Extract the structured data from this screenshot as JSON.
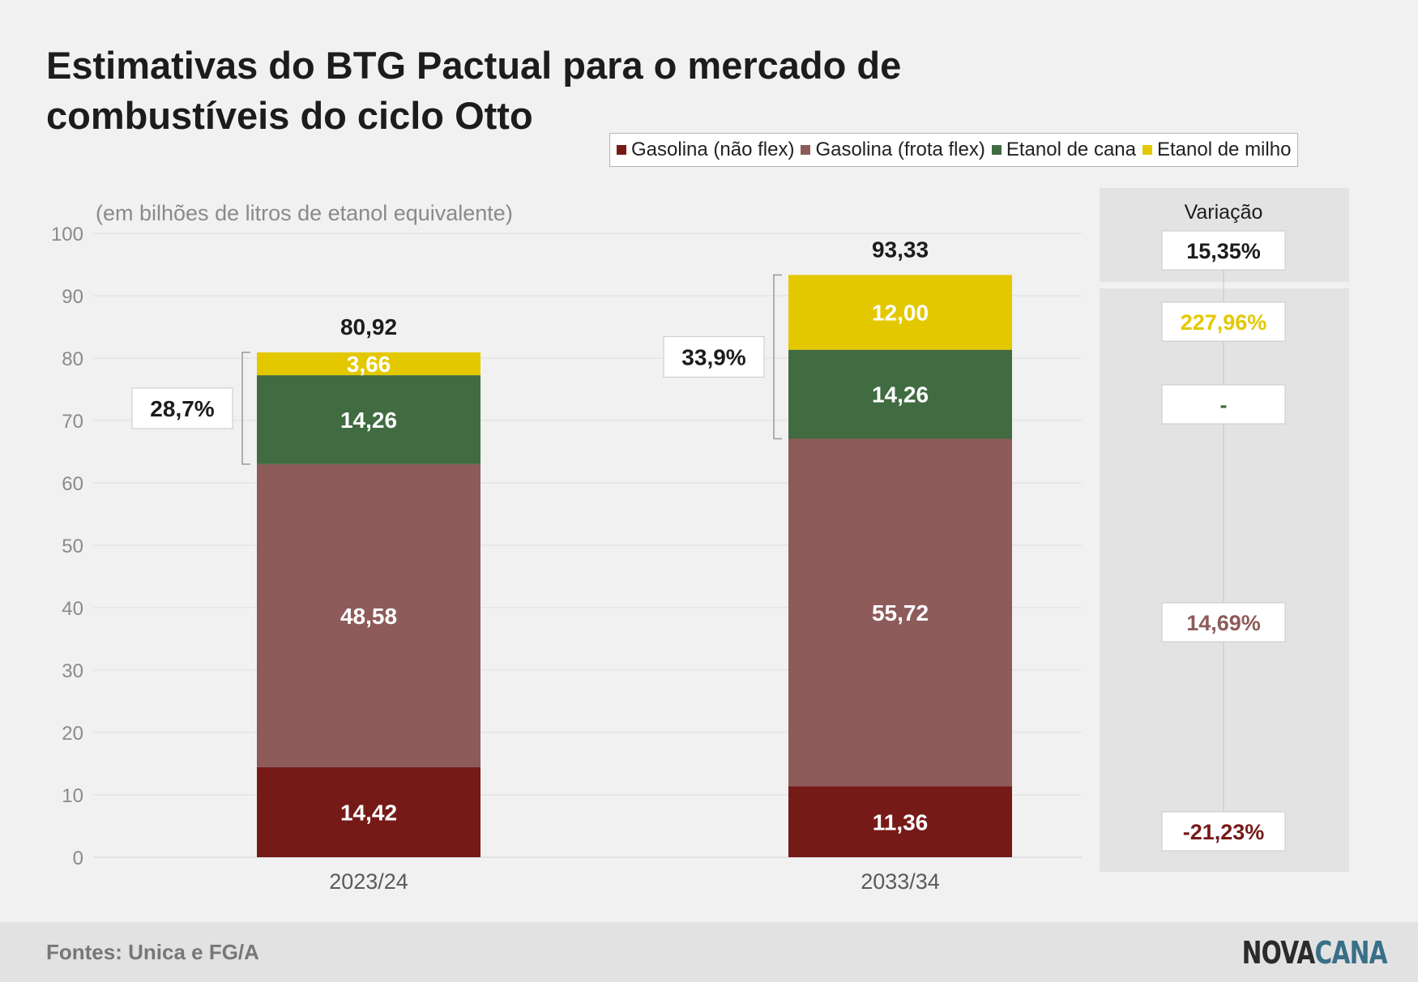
{
  "title": "Estimativas do BTG Pactual para o mercado de combustíveis do ciclo Otto",
  "source": "Fontes: Unica e FG/A",
  "logo": {
    "part1": "NOVA",
    "part2": "CANA",
    "color1": "#2b2b2b",
    "color2": "#3a6f88"
  },
  "variation_header": "Variação",
  "chart_data": {
    "type": "bar",
    "stacked": true,
    "subtitle": "(em bilhões de litros de etanol equivalente)",
    "categories": [
      "2023/24",
      "2033/34"
    ],
    "ylim": [
      0,
      100
    ],
    "yticks": [
      0,
      10,
      20,
      30,
      40,
      50,
      60,
      70,
      80,
      90,
      100
    ],
    "grid": true,
    "legend_position": "top-right",
    "series": [
      {
        "name": "Gasolina (não flex)",
        "color": "#761a18",
        "values": [
          14.42,
          11.36
        ],
        "labels": [
          "14,42",
          "11,36"
        ],
        "variation": "-21,23%",
        "variation_color": "#761a18"
      },
      {
        "name": "Gasolina (frota flex)",
        "color": "#8d5b5a",
        "values": [
          48.58,
          55.72
        ],
        "labels": [
          "48,58",
          "55,72"
        ],
        "variation": "14,69%",
        "variation_color": "#8d5b5a"
      },
      {
        "name": "Etanol de cana",
        "color": "#416b40",
        "values": [
          14.26,
          14.26
        ],
        "labels": [
          "14,26",
          "14,26"
        ],
        "variation": "-",
        "variation_color": "#416b40"
      },
      {
        "name": "Etanol de milho",
        "color": "#e3c800",
        "values": [
          3.66,
          12.0
        ],
        "labels": [
          "3,66",
          "12,00"
        ],
        "variation": "227,96%",
        "variation_color": "#e3c800"
      }
    ],
    "totals": [
      80.92,
      93.33
    ],
    "total_labels": [
      "80,92",
      "93,33"
    ],
    "total_variation": "15,35%",
    "ethanol_share_labels": [
      "28,7%",
      "33,9%"
    ]
  }
}
